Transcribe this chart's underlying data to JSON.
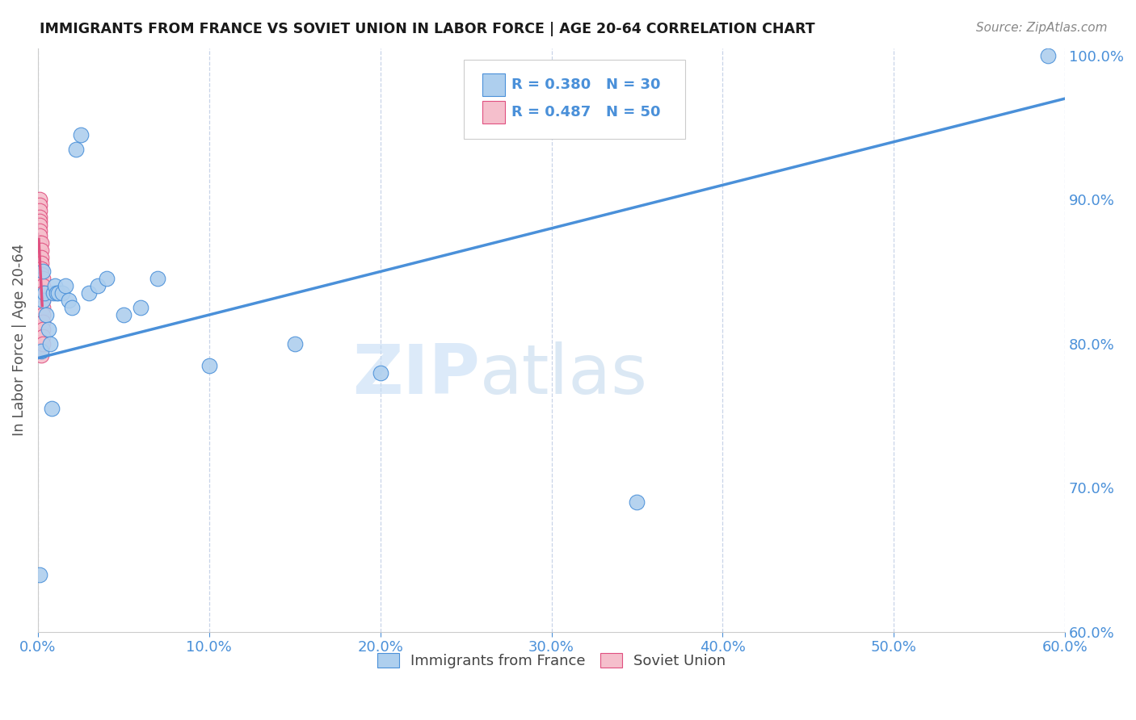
{
  "title": "IMMIGRANTS FROM FRANCE VS SOVIET UNION IN LABOR FORCE | AGE 20-64 CORRELATION CHART",
  "source": "Source: ZipAtlas.com",
  "ylabel": "In Labor Force | Age 20-64",
  "xlim": [
    0.0,
    0.6
  ],
  "ylim": [
    0.6,
    1.005
  ],
  "xticks": [
    0.0,
    0.1,
    0.2,
    0.3,
    0.4,
    0.5,
    0.6
  ],
  "yticks": [
    0.6,
    0.7,
    0.8,
    0.9,
    1.0
  ],
  "france_x": [
    0.001,
    0.002,
    0.003,
    0.003,
    0.004,
    0.005,
    0.006,
    0.007,
    0.008,
    0.009,
    0.01,
    0.011,
    0.012,
    0.014,
    0.016,
    0.018,
    0.02,
    0.022,
    0.025,
    0.03,
    0.035,
    0.04,
    0.05,
    0.06,
    0.07,
    0.1,
    0.15,
    0.2,
    0.35,
    0.59
  ],
  "france_y": [
    0.64,
    0.795,
    0.83,
    0.85,
    0.835,
    0.82,
    0.81,
    0.8,
    0.755,
    0.835,
    0.84,
    0.835,
    0.835,
    0.835,
    0.84,
    0.83,
    0.825,
    0.935,
    0.945,
    0.835,
    0.84,
    0.845,
    0.82,
    0.825,
    0.845,
    0.785,
    0.8,
    0.78,
    0.69,
    1.0
  ],
  "soviet_x": [
    0.001,
    0.001,
    0.001,
    0.001,
    0.001,
    0.001,
    0.001,
    0.001,
    0.001,
    0.001,
    0.001,
    0.001,
    0.001,
    0.001,
    0.001,
    0.001,
    0.001,
    0.001,
    0.001,
    0.001,
    0.002,
    0.002,
    0.002,
    0.002,
    0.002,
    0.002,
    0.002,
    0.002,
    0.002,
    0.002,
    0.002,
    0.002,
    0.002,
    0.002,
    0.002,
    0.002,
    0.002,
    0.002,
    0.002,
    0.002,
    0.003,
    0.003,
    0.003,
    0.003,
    0.003,
    0.003,
    0.003,
    0.003,
    0.003,
    0.003
  ],
  "soviet_y": [
    0.9,
    0.896,
    0.892,
    0.888,
    0.885,
    0.882,
    0.878,
    0.875,
    0.87,
    0.868,
    0.865,
    0.86,
    0.856,
    0.852,
    0.848,
    0.844,
    0.84,
    0.836,
    0.832,
    0.828,
    0.87,
    0.865,
    0.86,
    0.856,
    0.852,
    0.848,
    0.844,
    0.84,
    0.836,
    0.832,
    0.828,
    0.824,
    0.82,
    0.816,
    0.812,
    0.808,
    0.804,
    0.8,
    0.796,
    0.792,
    0.845,
    0.84,
    0.835,
    0.83,
    0.825,
    0.82,
    0.815,
    0.81,
    0.805,
    0.8
  ],
  "france_color": "#aecfee",
  "soviet_color": "#f5bfcc",
  "france_line_color": "#4a90d9",
  "soviet_line_color": "#e05080",
  "soviet_dashed_color": "#e8a0b8",
  "R_france": 0.38,
  "N_france": 30,
  "R_soviet": 0.487,
  "N_soviet": 50,
  "legend_france": "Immigrants from France",
  "legend_soviet": "Soviet Union",
  "watermark_zip": "ZIP",
  "watermark_atlas": "atlas",
  "background_color": "#ffffff",
  "grid_color": "#c8d4e8",
  "title_color": "#1a1a1a",
  "axis_color": "#4a90d9",
  "source_color": "#888888"
}
